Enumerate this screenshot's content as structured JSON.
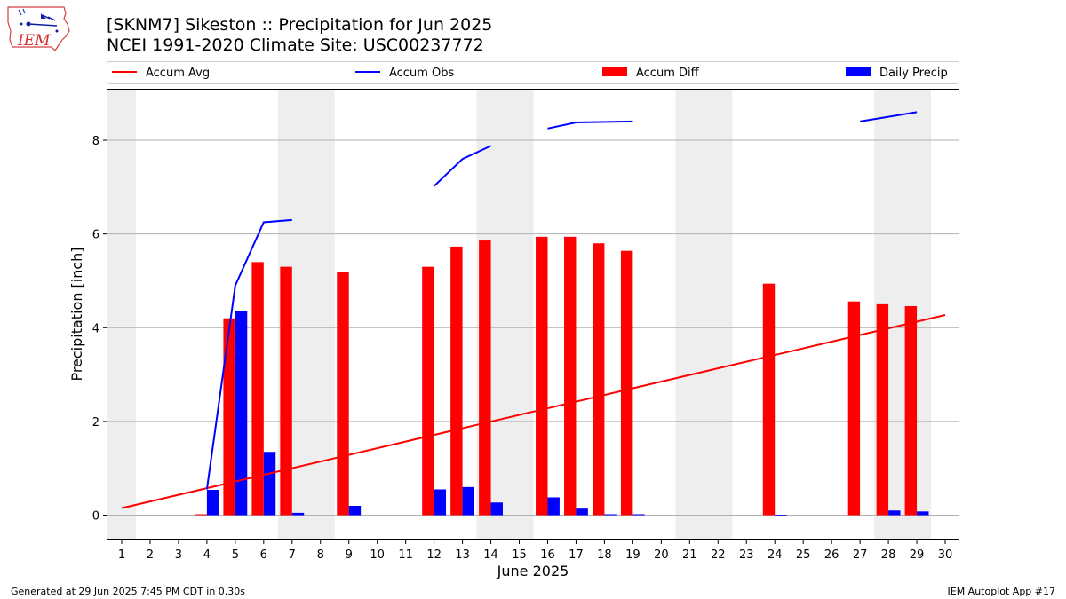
{
  "header": {
    "title_line1": "[SKNM7] Sikeston :: Precipitation for Jun 2025",
    "title_line2": "NCEI 1991-2020 Climate Site: USC00237772",
    "logo_text": "IEM"
  },
  "footer": {
    "left": "Generated at 29 Jun 2025 7:45 PM CDT in 0.30s",
    "right": "IEM Autoplot App #17"
  },
  "colors": {
    "accum_avg": "#ff0000",
    "accum_obs": "#0000ff",
    "accum_diff": "#ff0000",
    "daily_precip": "#0000ff",
    "weekend_shade": "#eeeeee",
    "grid": "#b0b0b0"
  },
  "chart_data": {
    "type": "bar",
    "xlabel": "June 2025",
    "ylabel": "Precipitation [inch]",
    "xlim": [
      0.5,
      30.5
    ],
    "ylim": [
      -0.52,
      9.08
    ],
    "yticks": [
      0,
      2,
      4,
      6,
      8
    ],
    "x": [
      1,
      2,
      3,
      4,
      5,
      6,
      7,
      8,
      9,
      10,
      11,
      12,
      13,
      14,
      15,
      16,
      17,
      18,
      19,
      20,
      21,
      22,
      23,
      24,
      25,
      26,
      27,
      28,
      29,
      30
    ],
    "grid": "horizontal",
    "legend": {
      "placement": "top",
      "entries": [
        "Accum Avg",
        "Accum Obs",
        "Accum Diff",
        "Daily Precip"
      ]
    },
    "weekend_days": [
      1,
      7,
      8,
      14,
      15,
      21,
      22,
      28,
      29
    ],
    "series": [
      {
        "name": "Accum Avg",
        "kind": "line",
        "x": [
          1,
          30
        ],
        "values": [
          0.15,
          4.27
        ]
      },
      {
        "name": "Accum Obs",
        "kind": "line",
        "segments": [
          {
            "x": [
              4,
              5,
              6,
              7
            ],
            "values": [
              0.55,
              4.9,
              6.25,
              6.3
            ]
          },
          {
            "x": [
              12,
              13,
              14
            ],
            "values": [
              7.02,
              7.6,
              7.88
            ]
          },
          {
            "x": [
              16,
              17,
              19
            ],
            "values": [
              8.25,
              8.38,
              8.4
            ]
          },
          {
            "x": [
              27,
              29
            ],
            "values": [
              8.4,
              8.6
            ]
          }
        ]
      },
      {
        "name": "Accum Diff",
        "kind": "bar",
        "x": [
          4,
          5,
          6,
          7,
          9,
          12,
          13,
          14,
          16,
          17,
          18,
          19,
          24,
          27,
          28,
          29
        ],
        "values": [
          0.02,
          4.2,
          5.4,
          5.3,
          5.18,
          5.3,
          5.73,
          5.86,
          5.94,
          5.94,
          5.8,
          5.64,
          4.94,
          4.56,
          4.5,
          4.46
        ]
      },
      {
        "name": "Daily Precip",
        "kind": "bar",
        "x": [
          4,
          5,
          6,
          7,
          9,
          12,
          13,
          14,
          16,
          17,
          18,
          19,
          24,
          28,
          29
        ],
        "values": [
          0.54,
          4.36,
          1.35,
          0.05,
          0.2,
          0.55,
          0.6,
          0.27,
          0.38,
          0.14,
          0.02,
          0.02,
          0.01,
          0.1,
          0.08
        ]
      }
    ]
  }
}
